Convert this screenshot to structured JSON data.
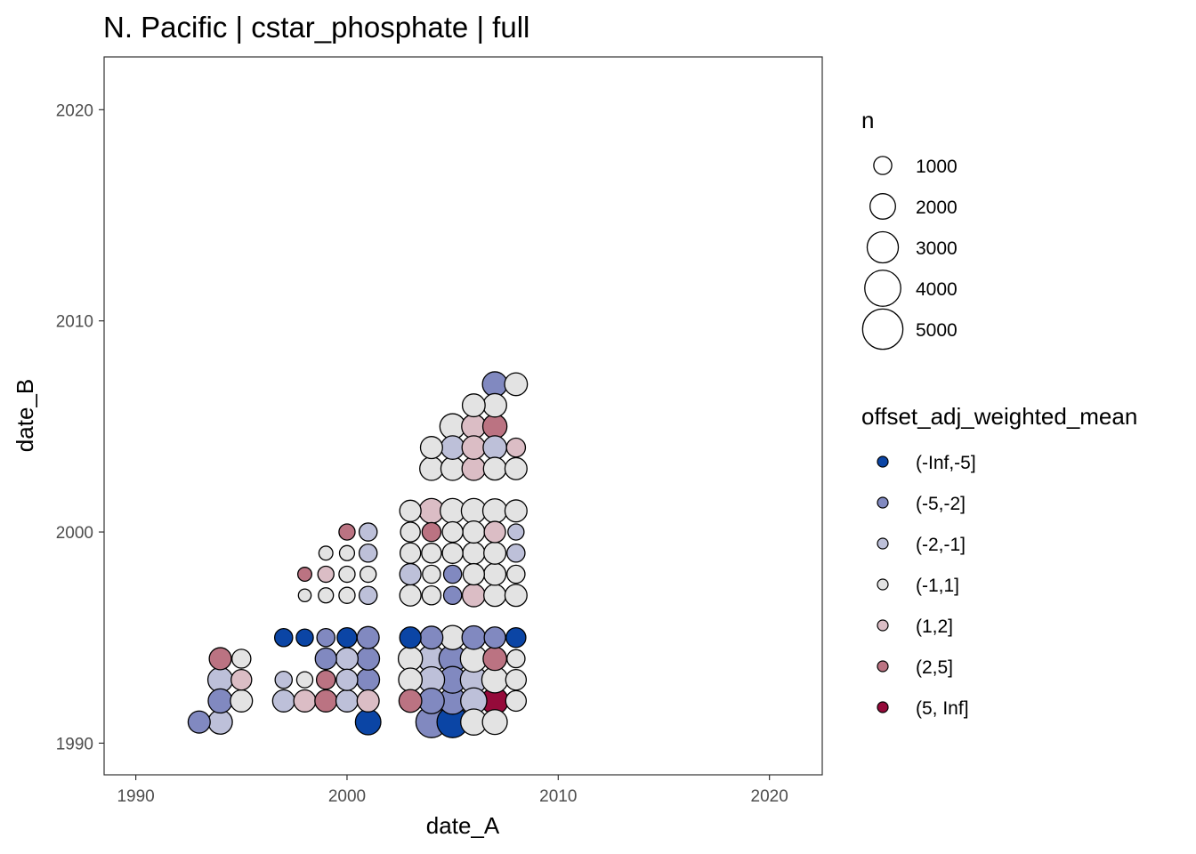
{
  "chart_data": {
    "type": "scatter",
    "title": "N. Pacific | cstar_phosphate | full",
    "xlabel": "date_A",
    "ylabel": "date_B",
    "xlim": [
      1988.5,
      2022.5
    ],
    "ylim": [
      1988.5,
      2022.5
    ],
    "xticks": [
      1990,
      2000,
      2010,
      2020
    ],
    "yticks": [
      1990,
      2000,
      2010,
      2020
    ],
    "grid": false,
    "size_legend": {
      "title": "n",
      "entries": [
        {
          "label": "1000",
          "value": 1000
        },
        {
          "label": "2000",
          "value": 2000
        },
        {
          "label": "3000",
          "value": 3000
        },
        {
          "label": "4000",
          "value": 4000
        },
        {
          "label": "5000",
          "value": 5000
        }
      ]
    },
    "color_legend": {
      "title": "offset_adj_weighted_mean",
      "bins": [
        {
          "label": "(-Inf,-5]",
          "color": "#0b45a5"
        },
        {
          "label": "(-5,-2]",
          "color": "#8189c0"
        },
        {
          "label": "(-2,-1]",
          "color": "#bdc0d9"
        },
        {
          "label": "(-1,1]",
          "color": "#e3e3e3"
        },
        {
          "label": "(1,2]",
          "color": "#dbbdc5"
        },
        {
          "label": "(2,5]",
          "color": "#bb7382"
        },
        {
          "label": "(5, Inf]",
          "color": "#950a3a"
        }
      ]
    },
    "point_columns": [
      "date_A",
      "date_B",
      "n",
      "bin"
    ],
    "points": [
      [
        1993,
        1991,
        1500,
        1
      ],
      [
        1994,
        1991,
        1800,
        2
      ],
      [
        1994,
        1992,
        1800,
        1
      ],
      [
        1995,
        1992,
        1500,
        3
      ],
      [
        1994,
        1993,
        1900,
        2
      ],
      [
        1995,
        1993,
        1300,
        4
      ],
      [
        1994,
        1994,
        1500,
        5
      ],
      [
        1995,
        1994,
        1100,
        3
      ],
      [
        1997,
        1992,
        1500,
        2
      ],
      [
        1998,
        1992,
        1500,
        4
      ],
      [
        1999,
        1992,
        1500,
        5
      ],
      [
        2000,
        1992,
        1500,
        2
      ],
      [
        2001,
        1992,
        1500,
        4
      ],
      [
        1997,
        1993,
        900,
        2
      ],
      [
        1998,
        1993,
        800,
        3
      ],
      [
        1999,
        1993,
        1100,
        5
      ],
      [
        2000,
        1993,
        1400,
        2
      ],
      [
        2001,
        1993,
        1600,
        1
      ],
      [
        1999,
        1994,
        1400,
        1
      ],
      [
        2000,
        1994,
        1500,
        2
      ],
      [
        2001,
        1994,
        1600,
        1
      ],
      [
        1997,
        1995,
        1000,
        0
      ],
      [
        1998,
        1995,
        900,
        0
      ],
      [
        1999,
        1995,
        1000,
        1
      ],
      [
        2000,
        1995,
        1200,
        0
      ],
      [
        2001,
        1995,
        1500,
        1
      ],
      [
        2001,
        1991,
        2000,
        0
      ],
      [
        2003,
        1992,
        1600,
        5
      ],
      [
        2004,
        1992,
        2000,
        1
      ],
      [
        2005,
        1992,
        2200,
        1
      ],
      [
        2006,
        1992,
        2100,
        2
      ],
      [
        2007,
        1992,
        2200,
        6
      ],
      [
        2008,
        1992,
        1300,
        3
      ],
      [
        2003,
        1993,
        1700,
        3
      ],
      [
        2004,
        1993,
        2100,
        2
      ],
      [
        2005,
        1993,
        2200,
        1
      ],
      [
        2006,
        1993,
        2200,
        2
      ],
      [
        2007,
        1993,
        2100,
        3
      ],
      [
        2008,
        1993,
        1300,
        3
      ],
      [
        2003,
        1994,
        1800,
        3
      ],
      [
        2004,
        1994,
        2300,
        2
      ],
      [
        2005,
        1994,
        2300,
        1
      ],
      [
        2006,
        1994,
        2200,
        3
      ],
      [
        2007,
        1994,
        1700,
        5
      ],
      [
        2008,
        1994,
        1000,
        3
      ],
      [
        2003,
        1995,
        1400,
        0
      ],
      [
        2004,
        1995,
        1600,
        1
      ],
      [
        2005,
        1995,
        1800,
        3
      ],
      [
        2006,
        1995,
        1700,
        1
      ],
      [
        2007,
        1995,
        1400,
        1
      ],
      [
        2008,
        1995,
        1200,
        0
      ],
      [
        2004,
        1991,
        3000,
        1
      ],
      [
        2005,
        1991,
        3000,
        0
      ],
      [
        2006,
        1991,
        2100,
        3
      ],
      [
        2007,
        1991,
        1900,
        3
      ],
      [
        1998,
        1998,
        600,
        5
      ],
      [
        1999,
        1998,
        800,
        4
      ],
      [
        2000,
        1998,
        800,
        3
      ],
      [
        2001,
        1998,
        800,
        3
      ],
      [
        1998,
        1997,
        500,
        3
      ],
      [
        1999,
        1997,
        700,
        3
      ],
      [
        2000,
        1997,
        800,
        3
      ],
      [
        2001,
        1997,
        1000,
        2
      ],
      [
        1999,
        1999,
        600,
        3
      ],
      [
        2000,
        1999,
        700,
        3
      ],
      [
        2001,
        1999,
        1000,
        2
      ],
      [
        2000,
        2000,
        800,
        5
      ],
      [
        2001,
        2000,
        1000,
        2
      ],
      [
        2003,
        1997,
        1400,
        3
      ],
      [
        2004,
        1997,
        1100,
        3
      ],
      [
        2005,
        1997,
        1000,
        1
      ],
      [
        2006,
        1997,
        1600,
        4
      ],
      [
        2007,
        1997,
        1500,
        3
      ],
      [
        2008,
        1997,
        1500,
        3
      ],
      [
        2003,
        1998,
        1400,
        2
      ],
      [
        2004,
        1998,
        1000,
        3
      ],
      [
        2005,
        1998,
        1000,
        1
      ],
      [
        2006,
        1998,
        1400,
        3
      ],
      [
        2007,
        1998,
        1500,
        3
      ],
      [
        2008,
        1998,
        1000,
        3
      ],
      [
        2003,
        1999,
        1300,
        3
      ],
      [
        2004,
        1999,
        1200,
        3
      ],
      [
        2005,
        1999,
        1300,
        3
      ],
      [
        2006,
        1999,
        1500,
        3
      ],
      [
        2007,
        1999,
        1500,
        3
      ],
      [
        2008,
        1999,
        1000,
        2
      ],
      [
        2003,
        2000,
        1200,
        3
      ],
      [
        2004,
        2000,
        1100,
        5
      ],
      [
        2005,
        2000,
        1300,
        3
      ],
      [
        2006,
        2000,
        1500,
        3
      ],
      [
        2007,
        2000,
        1400,
        4
      ],
      [
        2008,
        2000,
        800,
        2
      ],
      [
        2003,
        2001,
        1400,
        3
      ],
      [
        2004,
        2001,
        1900,
        4
      ],
      [
        2005,
        2001,
        1900,
        3
      ],
      [
        2006,
        2001,
        1900,
        3
      ],
      [
        2007,
        2001,
        1800,
        3
      ],
      [
        2008,
        2001,
        1500,
        3
      ],
      [
        2004,
        2003,
        1700,
        3
      ],
      [
        2005,
        2003,
        1700,
        3
      ],
      [
        2006,
        2003,
        1700,
        4
      ],
      [
        2007,
        2003,
        1600,
        3
      ],
      [
        2008,
        2003,
        1500,
        3
      ],
      [
        2004,
        2004,
        1500,
        3
      ],
      [
        2005,
        2004,
        1700,
        2
      ],
      [
        2006,
        2004,
        1700,
        4
      ],
      [
        2007,
        2004,
        1700,
        2
      ],
      [
        2008,
        2004,
        1100,
        4
      ],
      [
        2005,
        2005,
        2000,
        3
      ],
      [
        2006,
        2005,
        1800,
        4
      ],
      [
        2007,
        2005,
        1800,
        5
      ],
      [
        2006,
        2006,
        1600,
        3
      ],
      [
        2007,
        2006,
        1700,
        3
      ],
      [
        2007,
        2007,
        1900,
        1
      ],
      [
        2008,
        2007,
        1600,
        3
      ]
    ]
  }
}
